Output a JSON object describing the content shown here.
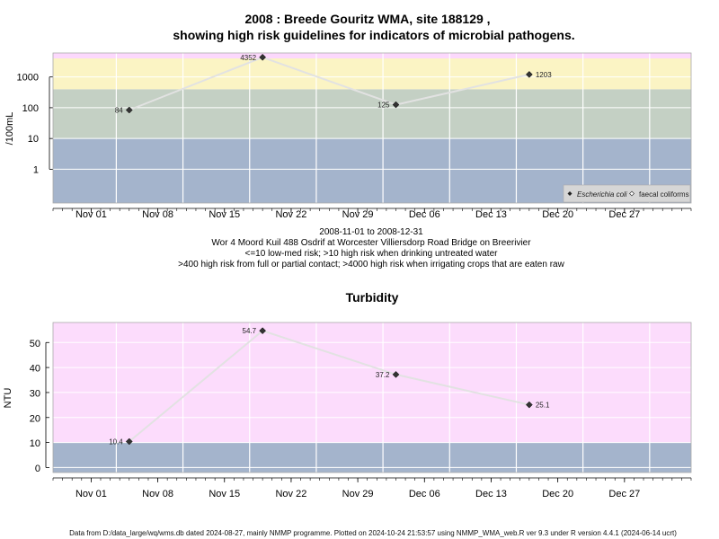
{
  "chart1": {
    "title_line1": "2008 : Breede Gouritz WMA, site 188129 ,",
    "title_line2": "showing high risk guidelines for indicators of microbial pathogens.",
    "ylabel": "/100mL",
    "y_ticks": [
      "1",
      "10",
      "100",
      "1000"
    ],
    "x_ticks": [
      "Nov 01",
      "Nov 08",
      "Nov 15",
      "Nov 22",
      "Nov 29",
      "Dec 06",
      "Dec 13",
      "Dec 20",
      "Dec 27"
    ],
    "legend": {
      "ecoli": "Escherichia coli",
      "faecal": "faecal coliforms"
    },
    "bands_colors": {
      "low": "#a4b4cc",
      "mid": "#c4d0c4",
      "high": "#fbf4c4",
      "very_high": "#fcd8fc"
    },
    "caption": [
      "2008-11-01 to 2008-12-31",
      "Wor 4 Moord Kuil 488 Osdrif at Worcester Villiersdorp Road Bridge on Breerivier",
      "<=10 low-med risk; >10 high risk when drinking untreated water",
      ">400 high risk from full or partial contact; >4000 high risk when irrigating crops that are eaten raw"
    ]
  },
  "chart2": {
    "title": "Turbidity",
    "ylabel": "NTU",
    "y_ticks": [
      "0",
      "10",
      "20",
      "30",
      "40",
      "50"
    ],
    "x_ticks": [
      "Nov 01",
      "Nov 08",
      "Nov 15",
      "Nov 22",
      "Nov 29",
      "Dec 06",
      "Dec 13",
      "Dec 20",
      "Dec 27"
    ],
    "band_colors": {
      "low": "#a4b4cc",
      "high": "#fcdcfc"
    }
  },
  "footer": "Data from D:/data_large/wq/wms.db dated 2024-08-27, mainly NMMP programme. Plotted on 2024-10-24 21:53:57 using NMMP_WMA_web.R ver 9.3 under R version 4.4.1 (2024-06-14 ucrt)",
  "chart_data": [
    {
      "type": "line",
      "title": "2008 : Breede Gouritz WMA, site 188129 , showing high risk guidelines for indicators of microbial pathogens.",
      "ylabel": "/100mL",
      "yscale": "log",
      "x_range": [
        "2008-10-28",
        "2009-01-03"
      ],
      "series": [
        {
          "name": "Escherichia coli",
          "points": [
            {
              "x": "2008-11-05",
              "y": 84,
              "label": "84"
            },
            {
              "x": "2008-11-19",
              "y": 4352,
              "label": "4352"
            },
            {
              "x": "2008-12-03",
              "y": 125,
              "label": "125"
            },
            {
              "x": "2008-12-17",
              "y": 1203,
              "label": "1203"
            }
          ]
        }
      ],
      "legend_placement": "bottom-right"
    },
    {
      "type": "line",
      "title": "Turbidity",
      "ylabel": "NTU",
      "ylim": [
        -2,
        58
      ],
      "x_range": [
        "2008-10-28",
        "2009-01-03"
      ],
      "series": [
        {
          "points": [
            {
              "x": "2008-11-05",
              "y": 10.4,
              "label": "10.4"
            },
            {
              "x": "2008-11-19",
              "y": 54.7,
              "label": "54.7"
            },
            {
              "x": "2008-12-03",
              "y": 37.2,
              "label": "37.2"
            },
            {
              "x": "2008-12-17",
              "y": 25.1,
              "label": "25.1"
            }
          ]
        }
      ]
    }
  ]
}
